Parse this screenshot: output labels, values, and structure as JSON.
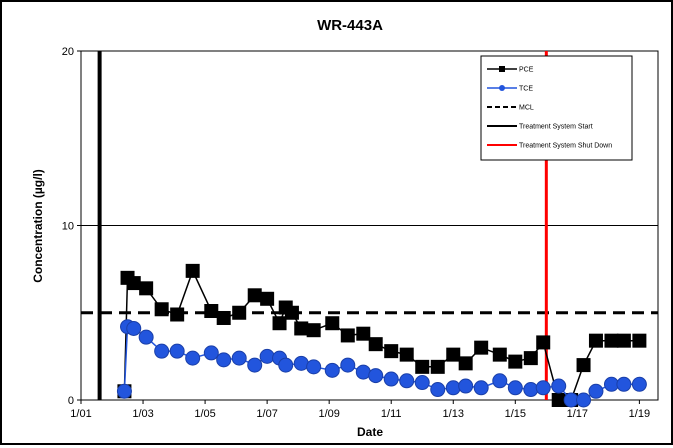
{
  "chart_data": {
    "type": "line",
    "title": "WR-443A",
    "xlabel": "Date",
    "ylabel": "Concentration (µg/l)",
    "x_tick_labels": [
      "1/01",
      "1/03",
      "1/05",
      "1/07",
      "1/09",
      "1/11",
      "1/13",
      "1/15",
      "1/17",
      "1/19"
    ],
    "x_tick_years": [
      2001,
      2003,
      2005,
      2007,
      2009,
      2011,
      2013,
      2015,
      2017,
      2019
    ],
    "y_ticks": [
      "0",
      "10",
      "20"
    ],
    "xlim": [
      2001,
      2019.6
    ],
    "ylim": [
      0,
      20
    ],
    "grid": "horizontal at 10",
    "legend_position": "top-right",
    "series": [
      {
        "name": "PCE",
        "color": "#000000",
        "marker": "square",
        "x": [
          2002.4,
          2002.5,
          2002.7,
          2003.1,
          2003.6,
          2004.1,
          2004.6,
          2005.2,
          2005.6,
          2006.1,
          2006.6,
          2007.0,
          2007.4,
          2007.6,
          2007.8,
          2008.1,
          2008.5,
          2009.1,
          2009.6,
          2010.1,
          2010.5,
          2011.0,
          2011.5,
          2012.0,
          2012.5,
          2013.0,
          2013.4,
          2013.9,
          2014.5,
          2015.0,
          2015.5,
          2015.9,
          2016.4,
          2016.8,
          2017.2,
          2017.6,
          2018.1,
          2018.5,
          2019.0
        ],
        "y": [
          0.5,
          7.0,
          6.7,
          6.4,
          5.2,
          4.9,
          7.4,
          5.1,
          4.7,
          5.0,
          6.0,
          5.8,
          4.4,
          5.3,
          5.0,
          4.1,
          4.0,
          4.4,
          3.7,
          3.8,
          3.2,
          2.8,
          2.6,
          1.9,
          1.9,
          2.6,
          2.1,
          3.0,
          2.6,
          2.2,
          2.4,
          3.3,
          0.0,
          0.0,
          2.0,
          3.4,
          3.4,
          3.4,
          3.4
        ]
      },
      {
        "name": "TCE",
        "color": "#2255dd",
        "marker": "circle",
        "x": [
          2002.4,
          2002.5,
          2002.7,
          2003.1,
          2003.6,
          2004.1,
          2004.6,
          2005.2,
          2005.6,
          2006.1,
          2006.6,
          2007.0,
          2007.4,
          2007.6,
          2008.1,
          2008.5,
          2009.1,
          2009.6,
          2010.1,
          2010.5,
          2011.0,
          2011.5,
          2012.0,
          2012.5,
          2013.0,
          2013.4,
          2013.9,
          2014.5,
          2015.0,
          2015.5,
          2015.9,
          2016.4,
          2016.8,
          2017.2,
          2017.6,
          2018.1,
          2018.5,
          2019.0
        ],
        "y": [
          0.5,
          4.2,
          4.1,
          3.6,
          2.8,
          2.8,
          2.4,
          2.7,
          2.3,
          2.4,
          2.0,
          2.5,
          2.4,
          2.0,
          2.1,
          1.9,
          1.7,
          2.0,
          1.6,
          1.4,
          1.2,
          1.1,
          1.0,
          0.6,
          0.7,
          0.8,
          0.7,
          1.1,
          0.7,
          0.6,
          0.7,
          0.8,
          0.0,
          0.0,
          0.5,
          0.9,
          0.9,
          0.9
        ]
      }
    ],
    "reference_lines": [
      {
        "name": "MCL",
        "orientation": "horizontal",
        "value": 5,
        "color": "#000000",
        "style": "dashed"
      },
      {
        "name": "Treatment System Start",
        "orientation": "vertical",
        "value": 2001.6,
        "color": "#000000",
        "style": "solid"
      },
      {
        "name": "Treatment System Shut Down",
        "orientation": "vertical",
        "value": 2016.0,
        "color": "#ff0000",
        "style": "solid"
      }
    ],
    "legend": [
      "PCE",
      "TCE",
      "MCL",
      "Treatment System Start",
      "Treatment System Shut Down"
    ]
  }
}
